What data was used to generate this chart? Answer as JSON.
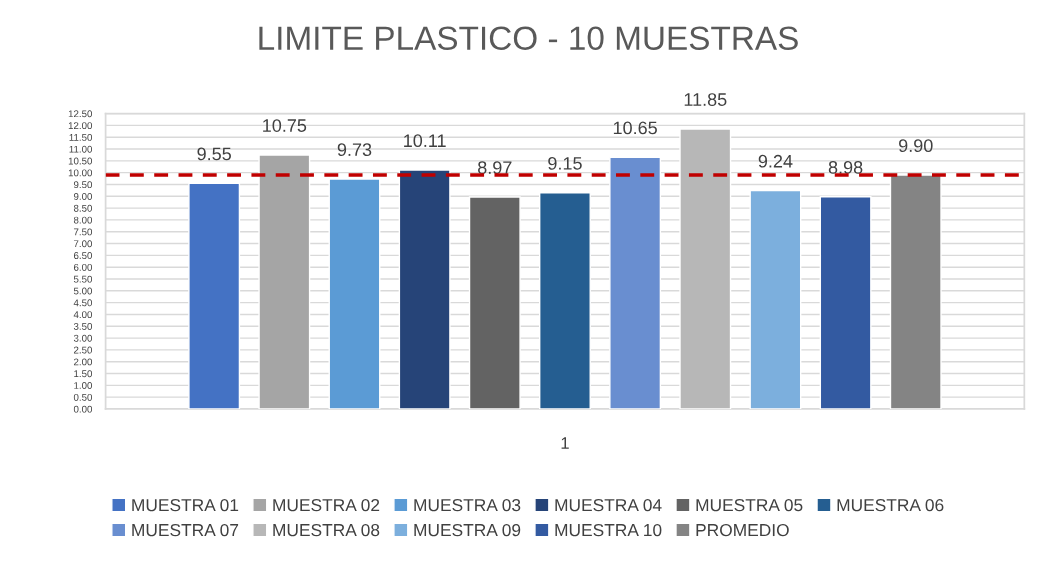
{
  "chart_data": {
    "type": "bar",
    "title": "LIMITE PLASTICO - 10 MUESTRAS",
    "categories": [
      "1"
    ],
    "series": [
      {
        "name": "MUESTRA 01",
        "color": "#4472c4",
        "values": [
          9.55
        ]
      },
      {
        "name": "MUESTRA 02",
        "color": "#a5a5a5",
        "values": [
          10.75
        ]
      },
      {
        "name": "MUESTRA 03",
        "color": "#5b9bd5",
        "values": [
          9.73
        ]
      },
      {
        "name": "MUESTRA 04",
        "color": "#264478",
        "values": [
          10.11
        ]
      },
      {
        "name": "MUESTRA 05",
        "color": "#636363",
        "values": [
          8.97
        ]
      },
      {
        "name": "MUESTRA 06",
        "color": "#255e91",
        "values": [
          9.15
        ]
      },
      {
        "name": "MUESTRA 07",
        "color": "#698ed0",
        "values": [
          10.65
        ]
      },
      {
        "name": "MUESTRA 08",
        "color": "#b7b7b7",
        "values": [
          11.85
        ]
      },
      {
        "name": "MUESTRA 09",
        "color": "#7cafdd",
        "values": [
          9.24
        ]
      },
      {
        "name": "MUESTRA 10",
        "color": "#335aa1",
        "values": [
          8.98
        ]
      },
      {
        "name": "PROMEDIO",
        "color": "#848484",
        "values": [
          9.9
        ],
        "value_labels": [
          "9.90"
        ]
      }
    ],
    "ylim": [
      0,
      12.5
    ],
    "yticks": [
      {
        "value": 0,
        "label": "0.00"
      },
      {
        "value": 0.5,
        "label": "0.50"
      },
      {
        "value": 1,
        "label": "1.00"
      },
      {
        "value": 1.5,
        "label": "1.50"
      },
      {
        "value": 2,
        "label": "2.00"
      },
      {
        "value": 2.5,
        "label": "2.50"
      },
      {
        "value": 3,
        "label": "3.00"
      },
      {
        "value": 3.5,
        "label": "3.50"
      },
      {
        "value": 4,
        "label": "4.00"
      },
      {
        "value": 4.5,
        "label": "4.50"
      },
      {
        "value": 5,
        "label": "5.00"
      },
      {
        "value": 5.5,
        "label": "5.50"
      },
      {
        "value": 6,
        "label": "6.00"
      },
      {
        "value": 6.5,
        "label": "6.50"
      },
      {
        "value": 7,
        "label": "7.00"
      },
      {
        "value": 7.5,
        "label": "7.50"
      },
      {
        "value": 8,
        "label": "8.00"
      },
      {
        "value": 8.5,
        "label": "8.50"
      },
      {
        "value": 9,
        "label": "9.00"
      },
      {
        "value": 9.5,
        "label": "9.50"
      },
      {
        "value": 10,
        "label": "10.00"
      },
      {
        "value": 10.5,
        "label": "10.50"
      },
      {
        "value": 11,
        "label": "11.00"
      },
      {
        "value": 11.5,
        "label": "11.50"
      },
      {
        "value": 12,
        "label": "12.00"
      },
      {
        "value": 12.5,
        "label": "12.50"
      }
    ],
    "ref_lines": [
      {
        "axis": "y",
        "value": 9.9,
        "color": "#c00000",
        "line_style": "dashed"
      }
    ],
    "data_labels": true,
    "grid": "y",
    "legend": "bottom"
  }
}
